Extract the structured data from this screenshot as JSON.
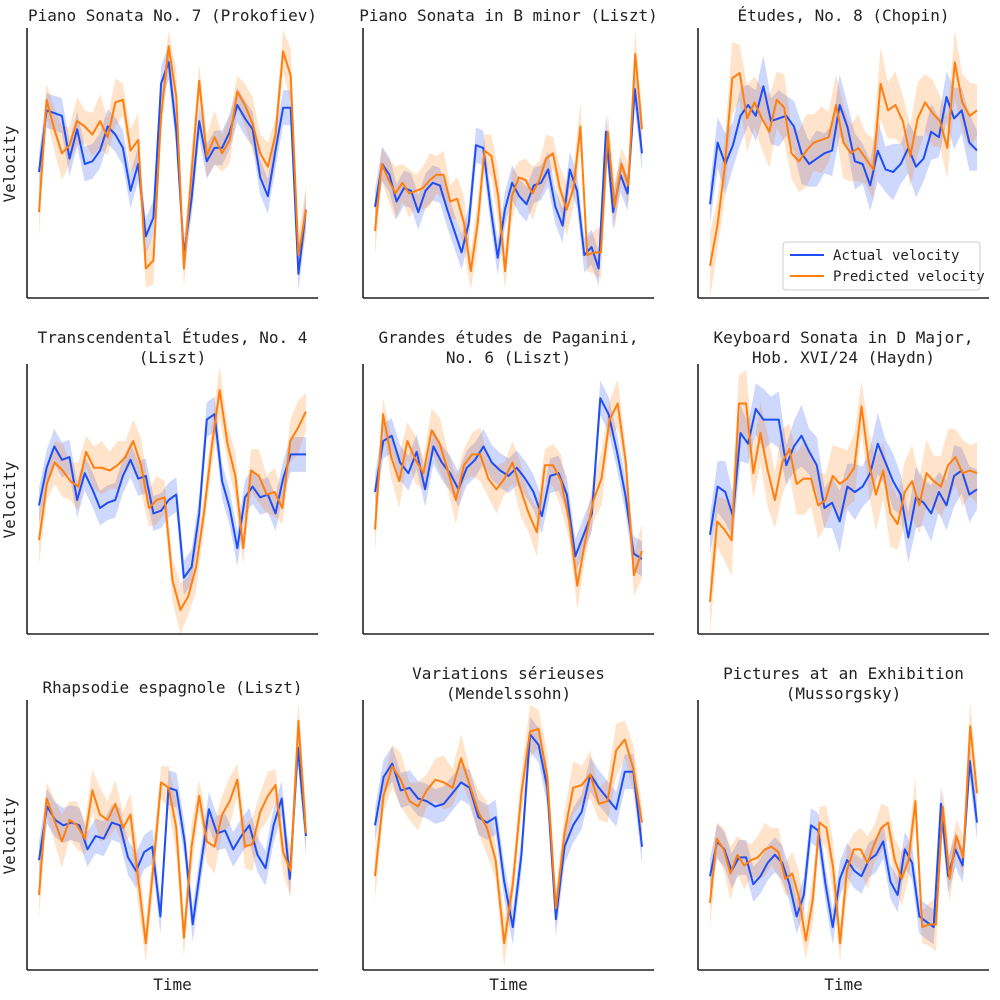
{
  "figure": {
    "x_label": "Time",
    "y_label": "Velocity",
    "legend": [
      {
        "label": "Actual velocity",
        "color": "#1f4ef5"
      },
      {
        "label": "Predicted velocity",
        "color": "#ff7f0e"
      }
    ]
  },
  "chart_data": [
    {
      "type": "line",
      "title": [
        "Piano Sonata No. 7 (Prokofiev)"
      ],
      "xlabel": "",
      "ylabel": "Velocity",
      "ylim": [
        0,
        100
      ],
      "series": [
        {
          "name": "Actual velocity",
          "values": [
            47,
            70,
            69,
            68,
            52,
            63,
            50,
            51,
            55,
            64,
            61,
            56,
            40,
            50,
            23,
            30,
            80,
            88,
            62,
            16,
            37,
            66,
            51,
            56,
            56,
            62,
            72,
            67,
            63,
            45,
            38,
            55,
            71,
            71,
            9,
            33
          ]
        },
        {
          "name": "Predicted velocity",
          "values": [
            32,
            74,
            63,
            54,
            57,
            66,
            64,
            61,
            66,
            60,
            73,
            74,
            55,
            59,
            11,
            14,
            68,
            94,
            75,
            11,
            47,
            81,
            53,
            60,
            54,
            59,
            77,
            72,
            65,
            54,
            49,
            61,
            92,
            83,
            16,
            33
          ]
        }
      ],
      "bands": [
        [
          0,
          0
        ],
        [
          5,
          5
        ]
      ]
    },
    {
      "type": "line",
      "title": [
        "Piano Sonata in B minor (Liszt)"
      ],
      "xlabel": "",
      "ylabel": "",
      "ylim": [
        0,
        100
      ],
      "series": [
        {
          "name": "Actual velocity",
          "values": [
            34,
            50,
            46,
            36,
            41,
            40,
            32,
            40,
            43,
            42,
            33,
            25,
            17,
            28,
            57,
            56,
            34,
            15,
            33,
            43,
            38,
            35,
            42,
            43,
            48,
            34,
            27,
            48,
            40,
            16,
            19,
            11,
            62,
            32,
            46,
            39,
            78,
            54
          ]
        },
        {
          "name": "Predicted velocity",
          "values": [
            25,
            50,
            44,
            39,
            43,
            39,
            40,
            41,
            44,
            46,
            46,
            36,
            37,
            28,
            10,
            28,
            55,
            53,
            38,
            10,
            38,
            45,
            44,
            39,
            44,
            52,
            54,
            41,
            33,
            41,
            64,
            16,
            17,
            17,
            62,
            34,
            50,
            42,
            91,
            63
          ]
        }
      ],
      "bands": [
        [
          0,
          0
        ],
        [
          5,
          5
        ]
      ]
    },
    {
      "type": "line",
      "title": [
        "Études, No. 8 (Chopin)"
      ],
      "xlabel": "",
      "ylabel": "",
      "ylim": [
        0,
        100
      ],
      "series": [
        {
          "name": "Actual velocity",
          "values": [
            35,
            58,
            50,
            57,
            68,
            72,
            68,
            79,
            66,
            67,
            68,
            64,
            54,
            50,
            52,
            54,
            55,
            72,
            64,
            51,
            50,
            42,
            55,
            48,
            47,
            50,
            56,
            49,
            52,
            62,
            60,
            75,
            67,
            70,
            58,
            55
          ]
        },
        {
          "name": "Predicted velocity",
          "values": [
            12,
            27,
            49,
            82,
            84,
            67,
            73,
            67,
            62,
            74,
            71,
            54,
            51,
            55,
            58,
            59,
            60,
            72,
            58,
            54,
            56,
            52,
            48,
            80,
            70,
            72,
            66,
            53,
            67,
            73,
            69,
            66,
            56,
            88,
            73,
            68,
            70
          ]
        }
      ],
      "bands": [
        [
          0,
          8
        ],
        [
          10,
          12
        ]
      ]
    },
    {
      "type": "line",
      "title": [
        "Transcendental Études, No. 4",
        "(Liszt)"
      ],
      "xlabel": "",
      "ylabel": "Velocity",
      "ylim": [
        0,
        100
      ],
      "series": [
        {
          "name": "Actual velocity",
          "values": [
            48,
            62,
            70,
            65,
            66,
            50,
            60,
            54,
            47,
            49,
            50,
            59,
            65,
            58,
            59,
            45,
            46,
            50,
            52,
            21,
            25,
            45,
            80,
            82,
            57,
            47,
            32,
            51,
            55,
            51,
            52,
            45,
            58,
            67,
            67,
            67
          ]
        },
        {
          "name": "Predicted velocity",
          "values": [
            35,
            56,
            64,
            61,
            57,
            55,
            68,
            62,
            62,
            61,
            63,
            66,
            72,
            63,
            47,
            50,
            51,
            20,
            9,
            14,
            25,
            45,
            70,
            91,
            71,
            59,
            32,
            61,
            59,
            52,
            53,
            47,
            72,
            77,
            83
          ]
        }
      ],
      "bands": [
        [
          0,
          0
        ],
        [
          5,
          5
        ]
      ]
    },
    {
      "type": "line",
      "title": [
        "Grandes études de Paganini,",
        "No. 6 (Liszt)"
      ],
      "xlabel": "",
      "ylabel": "",
      "ylim": [
        0,
        100
      ],
      "series": [
        {
          "name": "Actual velocity",
          "values": [
            53,
            72,
            74,
            64,
            60,
            68,
            54,
            70,
            64,
            60,
            54,
            62,
            65,
            70,
            64,
            61,
            59,
            62,
            58,
            53,
            44,
            59,
            60,
            52,
            29,
            37,
            45,
            88,
            82,
            68,
            52,
            30,
            28
          ]
        },
        {
          "name": "Predicted velocity",
          "values": [
            39,
            82,
            66,
            57,
            72,
            65,
            60,
            76,
            71,
            61,
            50,
            63,
            67,
            67,
            58,
            54,
            58,
            64,
            54,
            45,
            38,
            63,
            63,
            57,
            42,
            18,
            35,
            50,
            58,
            80,
            86,
            64,
            22,
            31
          ]
        }
      ],
      "bands": [
        [
          0,
          0
        ],
        [
          5,
          5
        ]
      ]
    },
    {
      "type": "line",
      "title": [
        "Keyboard Sonata in D Major,",
        "Hob. XVI/24 (Haydn)"
      ],
      "xlabel": "",
      "ylabel": "",
      "ylim": [
        0,
        100
      ],
      "series": [
        {
          "name": "Actual velocity",
          "values": [
            37,
            55,
            53,
            44,
            75,
            71,
            84,
            80,
            80,
            80,
            63,
            70,
            74,
            68,
            63,
            47,
            49,
            42,
            55,
            53,
            55,
            60,
            71,
            64,
            57,
            52,
            36,
            51,
            49,
            45,
            53,
            48,
            59,
            61,
            52,
            54
          ]
        },
        {
          "name": "Predicted velocity",
          "values": [
            12,
            42,
            39,
            35,
            86,
            86,
            60,
            75,
            61,
            50,
            64,
            69,
            56,
            58,
            58,
            48,
            50,
            59,
            56,
            58,
            62,
            85,
            64,
            52,
            61,
            45,
            41,
            53,
            57,
            48,
            60,
            57,
            55,
            63,
            66,
            60,
            61,
            60
          ]
        }
      ],
      "bands": [
        [
          0,
          8
        ],
        [
          10,
          12
        ]
      ]
    },
    {
      "type": "line",
      "title": [
        "Rhapsodie espagnole (Liszt)"
      ],
      "xlabel": "Time",
      "ylabel": "Velocity",
      "ylim": [
        0,
        100
      ],
      "series": [
        {
          "name": "Actual velocity",
          "values": [
            41,
            61,
            56,
            54,
            55,
            54,
            45,
            50,
            49,
            55,
            54,
            42,
            37,
            44,
            46,
            20,
            68,
            67,
            48,
            17,
            39,
            60,
            51,
            52,
            45,
            50,
            54,
            43,
            38,
            54,
            64,
            34,
            83,
            50
          ]
        },
        {
          "name": "Predicted velocity",
          "values": [
            28,
            64,
            56,
            48,
            56,
            54,
            49,
            67,
            58,
            56,
            62,
            53,
            58,
            34,
            10,
            39,
            70,
            68,
            53,
            12,
            46,
            65,
            48,
            46,
            58,
            63,
            71,
            46,
            47,
            59,
            65,
            69,
            44,
            37,
            93,
            51
          ]
        }
      ],
      "bands": [
        [
          0,
          0
        ],
        [
          5,
          5
        ]
      ]
    },
    {
      "type": "line",
      "title": [
        "Variations sérieuses",
        "(Mendelssohn)"
      ],
      "xlabel": "Time",
      "ylabel": "",
      "ylim": [
        0,
        100
      ],
      "series": [
        {
          "name": "Actual velocity",
          "values": [
            54,
            72,
            77,
            67,
            68,
            64,
            63,
            61,
            62,
            66,
            70,
            68,
            57,
            55,
            57,
            33,
            16,
            43,
            88,
            84,
            68,
            19,
            46,
            54,
            59,
            73,
            68,
            64,
            60,
            74,
            74,
            46
          ]
        },
        {
          "name": "Predicted velocity",
          "values": [
            35,
            65,
            76,
            71,
            63,
            61,
            67,
            71,
            70,
            68,
            79,
            69,
            59,
            53,
            41,
            10,
            32,
            66,
            89,
            90,
            72,
            23,
            51,
            68,
            69,
            73,
            62,
            63,
            82,
            86,
            75,
            55
          ]
        }
      ],
      "bands": [
        [
          0,
          0
        ],
        [
          5,
          5
        ]
      ]
    },
    {
      "type": "line",
      "title": [
        "Pictures at an Exhibition",
        "(Mussorgsky)"
      ],
      "xlabel": "Time",
      "ylabel": "",
      "ylim": [
        0,
        100
      ],
      "series": [
        {
          "name": "Actual velocity",
          "values": [
            35,
            48,
            45,
            37,
            42,
            42,
            32,
            35,
            40,
            43,
            40,
            32,
            20,
            28,
            54,
            52,
            32,
            16,
            34,
            41,
            37,
            35,
            41,
            43,
            48,
            33,
            28,
            45,
            40,
            20,
            18,
            16,
            62,
            35,
            45,
            39,
            78,
            55
          ]
        },
        {
          "name": "Predicted velocity",
          "values": [
            25,
            49,
            45,
            36,
            43,
            39,
            41,
            42,
            45,
            46,
            44,
            34,
            36,
            27,
            11,
            26,
            55,
            53,
            38,
            10,
            37,
            45,
            45,
            40,
            47,
            53,
            55,
            41,
            34,
            41,
            63,
            16,
            17,
            17,
            61,
            34,
            50,
            42,
            91,
            66
          ]
        }
      ],
      "bands": [
        [
          0,
          0
        ],
        [
          5,
          5
        ]
      ]
    }
  ]
}
